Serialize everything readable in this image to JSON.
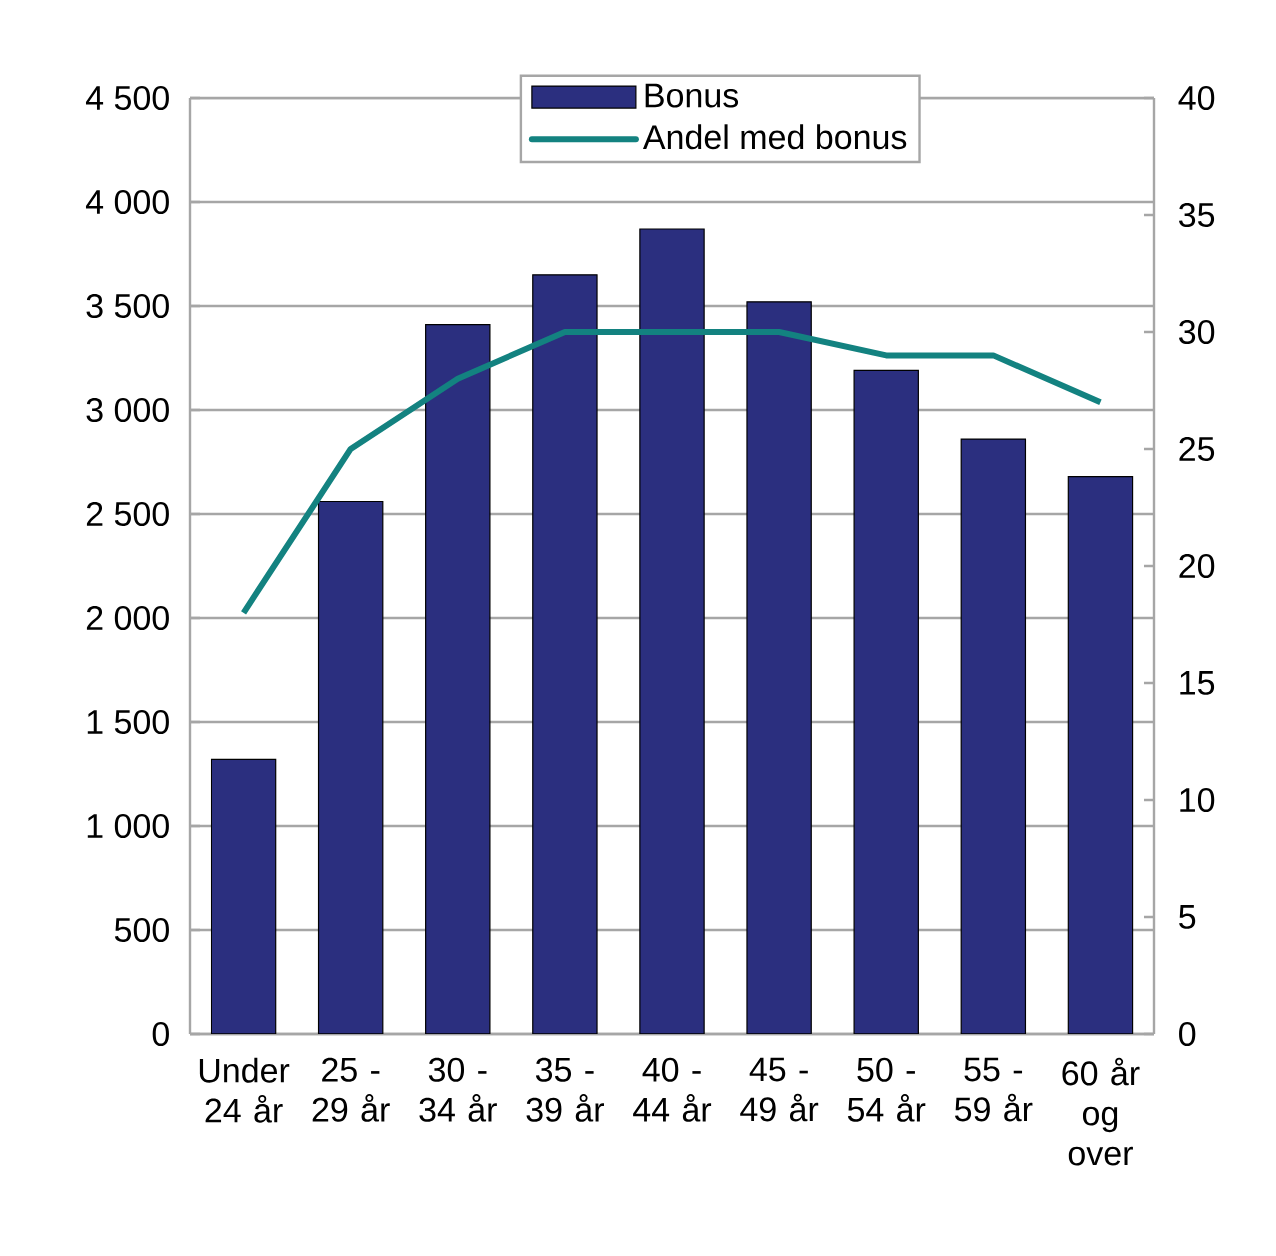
{
  "chart_data": {
    "type": "bar",
    "categories": [
      "Under 24 år",
      "25 - 29 år",
      "30 - 34 år",
      "35 - 39 år",
      "40 - 44 år",
      "45 - 49 år",
      "50 - 54 år",
      "55 - 59 år",
      "60 år og over"
    ],
    "series": [
      {
        "name": "Bonus",
        "color": "#2b2f7f",
        "values": [
          1320,
          2560,
          3410,
          3650,
          3870,
          3520,
          3190,
          2860,
          2680
        ]
      },
      {
        "name": "Andel med bonus",
        "type": "line",
        "axis": "y2",
        "color": "#138280",
        "values": [
          18,
          25,
          28,
          30,
          30,
          30,
          29,
          29,
          27
        ]
      }
    ],
    "ylim": [
      0,
      4500
    ],
    "yticks": [
      {
        "value": 0,
        "label": "0"
      },
      {
        "value": 500,
        "label": "500"
      },
      {
        "value": 1000,
        "label": "1 000"
      },
      {
        "value": 1500,
        "label": "1 500"
      },
      {
        "value": 2000,
        "label": "2 000"
      },
      {
        "value": 2500,
        "label": "2 500"
      },
      {
        "value": 3000,
        "label": "3 000"
      },
      {
        "value": 3500,
        "label": "3 500"
      },
      {
        "value": 4000,
        "label": "4 000"
      },
      {
        "value": 4500,
        "label": "4 500"
      }
    ],
    "y2lim": [
      0,
      40
    ],
    "y2ticks": [
      0,
      5,
      10,
      15,
      20,
      25,
      30,
      35,
      40
    ],
    "grid": "y",
    "legend": "top"
  }
}
